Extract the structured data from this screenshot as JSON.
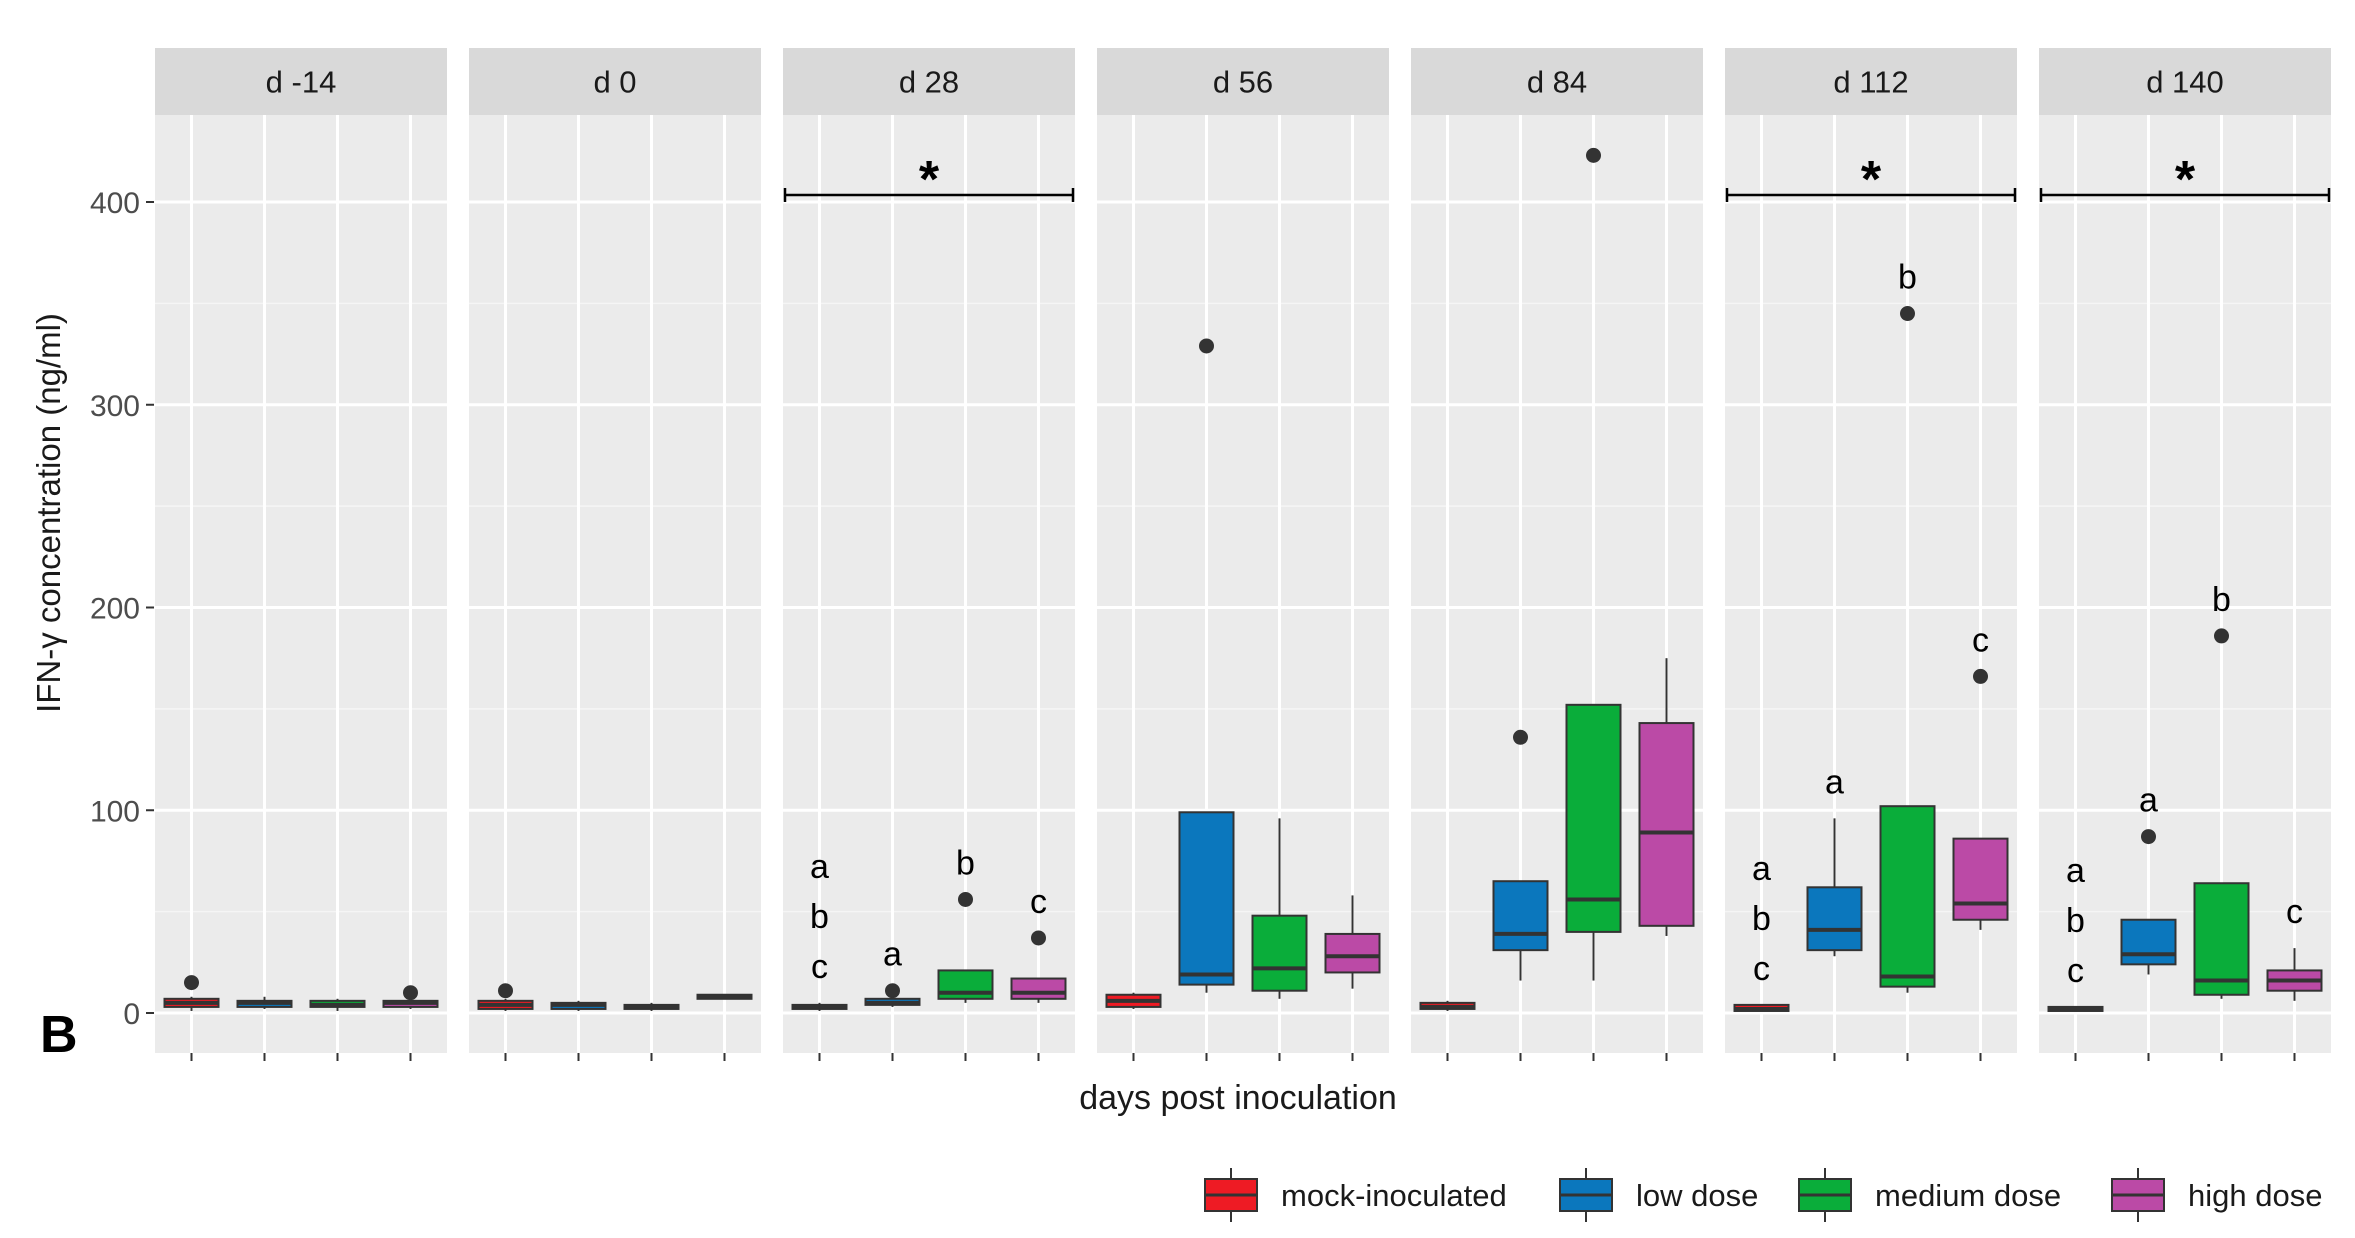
{
  "panel_label": "B",
  "chart_data": {
    "type": "boxplot",
    "title": "",
    "xlabel": "days post inoculation",
    "ylabel": "IFN-γ concentration (ng/ml)",
    "ylim": [
      -20,
      445
    ],
    "yticks": [
      0,
      100,
      200,
      300,
      400
    ],
    "groups": [
      {
        "name": "mock-inoculated",
        "color": "#ee1b24"
      },
      {
        "name": "low dose",
        "color": "#0b77bd"
      },
      {
        "name": "medium dose",
        "color": "#0aad3a"
      },
      {
        "name": "high dose",
        "color": "#bb4aa6"
      }
    ],
    "legend_position": "bottom-right",
    "panels": [
      {
        "label": "d -14",
        "sig": "",
        "boxes": [
          {
            "q1": 3,
            "median": 5,
            "q3": 7,
            "wmin": 1,
            "wmax": 8,
            "outliers": [
              15
            ]
          },
          {
            "q1": 3,
            "median": 5,
            "q3": 6,
            "wmin": 2,
            "wmax": 8,
            "outliers": []
          },
          {
            "q1": 3,
            "median": 4,
            "q3": 6,
            "wmin": 1,
            "wmax": 7,
            "outliers": []
          },
          {
            "q1": 3,
            "median": 5,
            "q3": 6,
            "wmin": 2,
            "wmax": 8,
            "outliers": [
              10
            ]
          }
        ],
        "letters": [
          [],
          [],
          [],
          []
        ]
      },
      {
        "label": "d 0",
        "sig": "",
        "boxes": [
          {
            "q1": 2,
            "median": 4,
            "q3": 6,
            "wmin": 1,
            "wmax": 7,
            "outliers": [
              11
            ]
          },
          {
            "q1": 2,
            "median": 4,
            "q3": 5,
            "wmin": 1,
            "wmax": 6,
            "outliers": []
          },
          {
            "q1": 2,
            "median": 3,
            "q3": 4,
            "wmin": 1,
            "wmax": 5,
            "outliers": []
          },
          {
            "q1": 7,
            "median": 8,
            "q3": 9,
            "wmin": 7,
            "wmax": 9,
            "outliers": []
          }
        ],
        "letters": [
          [],
          [],
          [],
          []
        ]
      },
      {
        "label": "d 28",
        "sig": "*",
        "boxes": [
          {
            "q1": 2,
            "median": 3,
            "q3": 4,
            "wmin": 1,
            "wmax": 5,
            "outliers": []
          },
          {
            "q1": 4,
            "median": 5,
            "q3": 7,
            "wmin": 3,
            "wmax": 9,
            "outliers": [
              11
            ]
          },
          {
            "q1": 7,
            "median": 10,
            "q3": 21,
            "wmin": 5,
            "wmax": 21,
            "outliers": [
              56
            ]
          },
          {
            "q1": 7,
            "median": 10,
            "q3": 17,
            "wmin": 5,
            "wmax": 17,
            "outliers": [
              37
            ]
          }
        ],
        "letters": [
          [
            "a",
            "b",
            "c"
          ],
          [
            "a"
          ],
          [
            "b"
          ],
          [
            "c"
          ]
        ]
      },
      {
        "label": "d 56",
        "sig": "",
        "boxes": [
          {
            "q1": 3,
            "median": 6,
            "q3": 9,
            "wmin": 2,
            "wmax": 10,
            "outliers": []
          },
          {
            "q1": 14,
            "median": 19,
            "q3": 99,
            "wmin": 10,
            "wmax": 99,
            "outliers": [
              329
            ]
          },
          {
            "q1": 11,
            "median": 22,
            "q3": 48,
            "wmin": 7,
            "wmax": 96,
            "outliers": []
          },
          {
            "q1": 20,
            "median": 28,
            "q3": 39,
            "wmin": 12,
            "wmax": 58,
            "outliers": []
          }
        ],
        "letters": [
          [],
          [],
          [],
          []
        ]
      },
      {
        "label": "d 84",
        "sig": "",
        "boxes": [
          {
            "q1": 2,
            "median": 3,
            "q3": 5,
            "wmin": 1,
            "wmax": 6,
            "outliers": []
          },
          {
            "q1": 31,
            "median": 39,
            "q3": 65,
            "wmin": 16,
            "wmax": 65,
            "outliers": [
              136
            ]
          },
          {
            "q1": 40,
            "median": 56,
            "q3": 152,
            "wmin": 16,
            "wmax": 152,
            "outliers": [
              423
            ]
          },
          {
            "q1": 43,
            "median": 89,
            "q3": 143,
            "wmin": 38,
            "wmax": 175,
            "outliers": []
          }
        ],
        "letters": [
          [],
          [],
          [],
          []
        ]
      },
      {
        "label": "d 112",
        "sig": "*",
        "boxes": [
          {
            "q1": 1,
            "median": 2,
            "q3": 4,
            "wmin": 1,
            "wmax": 4,
            "outliers": []
          },
          {
            "q1": 31,
            "median": 41,
            "q3": 62,
            "wmin": 28,
            "wmax": 96,
            "outliers": []
          },
          {
            "q1": 13,
            "median": 18,
            "q3": 102,
            "wmin": 10,
            "wmax": 102,
            "outliers": [
              345
            ]
          },
          {
            "q1": 46,
            "median": 54,
            "q3": 86,
            "wmin": 41,
            "wmax": 86,
            "outliers": [
              166
            ]
          }
        ],
        "letters": [
          [
            "a",
            "b",
            "c"
          ],
          [
            "a"
          ],
          [
            "b"
          ],
          [
            "c"
          ]
        ]
      },
      {
        "label": "d 140",
        "sig": "*",
        "boxes": [
          {
            "q1": 1,
            "median": 2,
            "q3": 3,
            "wmin": 1,
            "wmax": 3,
            "outliers": []
          },
          {
            "q1": 24,
            "median": 29,
            "q3": 46,
            "wmin": 19,
            "wmax": 46,
            "outliers": [
              87
            ]
          },
          {
            "q1": 9,
            "median": 16,
            "q3": 64,
            "wmin": 7,
            "wmax": 64,
            "outliers": [
              186
            ]
          },
          {
            "q1": 11,
            "median": 16,
            "q3": 21,
            "wmin": 6,
            "wmax": 32,
            "outliers": []
          }
        ],
        "letters": [
          [
            "a",
            "b",
            "c"
          ],
          [
            "a"
          ],
          [
            "b"
          ],
          [
            "c"
          ]
        ]
      }
    ]
  }
}
